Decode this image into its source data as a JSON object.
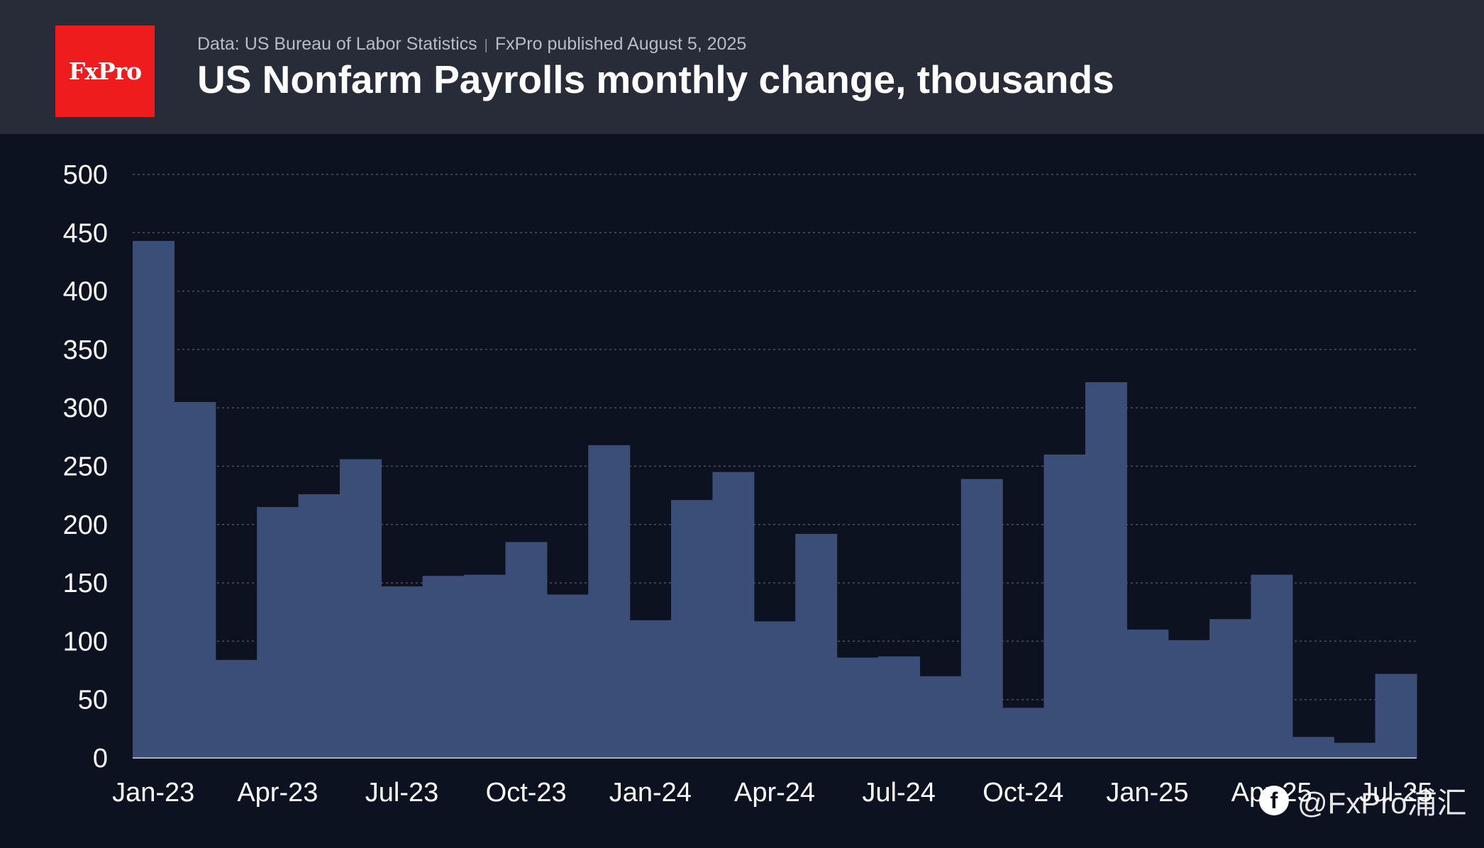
{
  "header": {
    "logo_text": "FxPro",
    "source": "Data: US Bureau of Labor Statistics",
    "separator": "|",
    "published": "FxPro published August 5, 2025",
    "title": "US Nonfarm Payrolls monthly change, thousands"
  },
  "watermark": {
    "icon": "f",
    "text": "@FxPro浦汇"
  },
  "colors": {
    "bar": "#3b4e78",
    "background": "#0c1220",
    "header": "#282b38",
    "logo": "#ee1c1c",
    "grid": "#4a5060"
  },
  "chart_data": {
    "type": "bar",
    "style": "step-area",
    "ylim": [
      0,
      500
    ],
    "yticks": [
      0,
      50,
      100,
      150,
      200,
      250,
      300,
      350,
      400,
      450,
      500
    ],
    "xtick_labels": [
      "Jan-23",
      "Apr-23",
      "Jul-23",
      "Oct-23",
      "Jan-24",
      "Apr-24",
      "Jul-24",
      "Oct-24",
      "Jan-25",
      "Apr-25",
      "Jul-25"
    ],
    "xtick_indices": [
      0,
      3,
      6,
      9,
      12,
      15,
      18,
      21,
      24,
      27,
      30
    ],
    "grid": true,
    "categories": [
      "Jan-23",
      "Feb-23",
      "Mar-23",
      "Apr-23",
      "May-23",
      "Jun-23",
      "Jul-23",
      "Aug-23",
      "Sep-23",
      "Oct-23",
      "Nov-23",
      "Dec-23",
      "Jan-24",
      "Feb-24",
      "Mar-24",
      "Apr-24",
      "May-24",
      "Jun-24",
      "Jul-24",
      "Aug-24",
      "Sep-24",
      "Oct-24",
      "Nov-24",
      "Dec-24",
      "Jan-25",
      "Feb-25",
      "Mar-25",
      "Apr-25",
      "May-25",
      "Jun-25",
      "Jul-25"
    ],
    "values": [
      443,
      305,
      84,
      215,
      226,
      256,
      147,
      156,
      157,
      185,
      140,
      268,
      118,
      221,
      245,
      117,
      192,
      86,
      87,
      70,
      239,
      43,
      260,
      322,
      110,
      101,
      119,
      157,
      18,
      13,
      72
    ]
  }
}
